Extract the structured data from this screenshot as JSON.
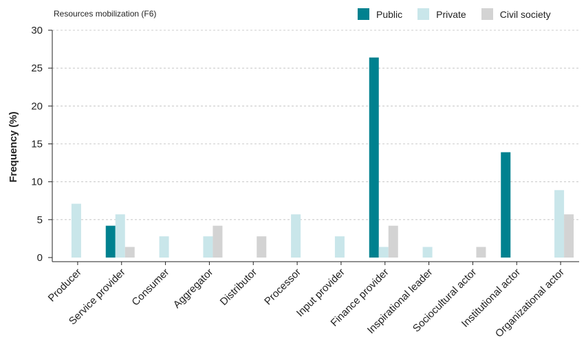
{
  "chart_data": {
    "type": "bar",
    "subtitle": "Resources mobilization (F6)",
    "ylabel": "Frequency (%)",
    "xlabel": "",
    "ylim": [
      0,
      30
    ],
    "yticks": [
      0,
      5,
      10,
      15,
      20,
      25,
      30
    ],
    "grid": true,
    "legend_position": "top-right",
    "categories": [
      "Producer",
      "Service provider",
      "Consumer",
      "Aggregator",
      "Distributor",
      "Processor",
      "Input provider",
      "Finance provider",
      "Inspirational leader",
      "Sociocultural actor",
      "Institutional actor",
      "Organizational actor"
    ],
    "series": [
      {
        "name": "Public",
        "color": "#00818f",
        "values": [
          0,
          4.2,
          0,
          0,
          0,
          0,
          0,
          26.4,
          0,
          0,
          13.9,
          0
        ]
      },
      {
        "name": "Private",
        "color": "#c9e6ea",
        "values": [
          7.1,
          5.7,
          2.8,
          2.8,
          0,
          5.7,
          2.8,
          1.4,
          1.4,
          0,
          0,
          8.9
        ]
      },
      {
        "name": "Civil society",
        "color": "#d3d3d3",
        "values": [
          0,
          1.4,
          0,
          4.2,
          2.8,
          0,
          0,
          4.2,
          0,
          1.4,
          0,
          5.7
        ]
      }
    ]
  }
}
